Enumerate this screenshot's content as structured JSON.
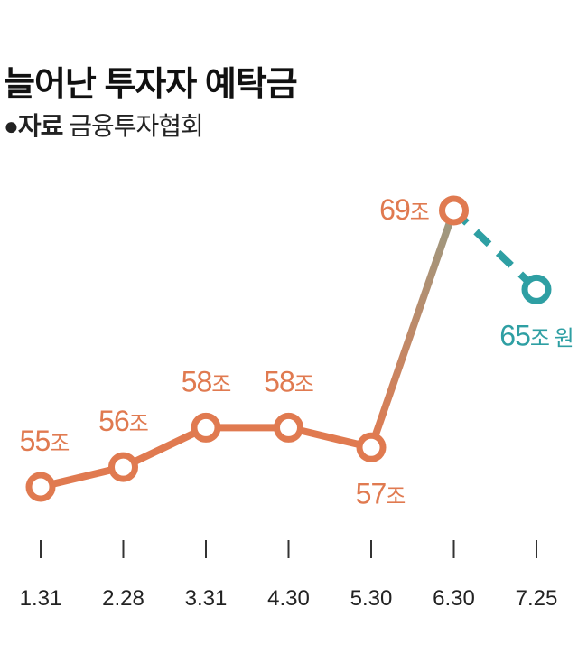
{
  "title": "늘어난 투자자 예탁금",
  "source": {
    "bullet": "●",
    "label": "자료",
    "value": "금융투자협회"
  },
  "colors": {
    "actual": "#e07a50",
    "latest": "#2e9fa3",
    "transition": "#9a9a82",
    "axis": "#333333"
  },
  "chart_data": {
    "type": "line",
    "title": "늘어난 투자자 예탁금",
    "categories": [
      "1.31",
      "2.28",
      "3.31",
      "4.30",
      "5.30",
      "6.30",
      "7.25"
    ],
    "values": [
      55,
      56,
      58,
      58,
      57,
      69,
      65
    ],
    "labels": [
      "55조",
      "56조",
      "58조",
      "58조",
      "57조",
      "69조",
      "65조 원"
    ],
    "unit": "조 원",
    "ylim": [
      55,
      69
    ],
    "grid": false,
    "note": "last segment (6.30 → 7.25) drawn dashed in teal"
  }
}
